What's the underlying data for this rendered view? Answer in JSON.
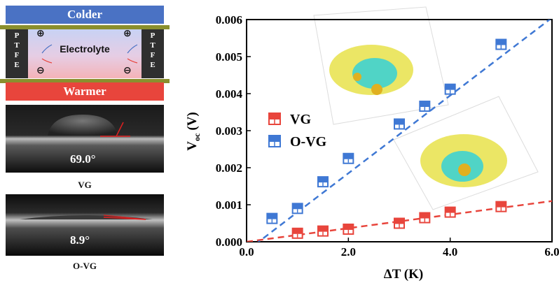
{
  "schematic": {
    "top_label": "Colder",
    "bottom_label": "Warmer",
    "middle_label": "Electrolyte",
    "ptfe_letters": [
      "P",
      "T",
      "F",
      "E"
    ],
    "plus_symbol": "⊕",
    "minus_symbol": "⊖",
    "colors": {
      "cold": "#4a72c4",
      "warm": "#e8453c",
      "electrode": "#8a8f2e",
      "ptfe": "#2f2f2f"
    }
  },
  "photos": [
    {
      "angle": "69.0°",
      "caption": "VG"
    },
    {
      "angle": "8.9°",
      "caption": "O-VG"
    }
  ],
  "chart_data": {
    "type": "scatter",
    "xlabel": "ΔT (K)",
    "ylabel_main": "V",
    "ylabel_sub": "oc",
    "ylabel_unit": "(V)",
    "xlim": [
      0.0,
      6.0
    ],
    "ylim": [
      0.0,
      0.006
    ],
    "xticks": [
      "0.0",
      "2.0",
      "4.0",
      "6.0"
    ],
    "yticks": [
      "0.000",
      "0.001",
      "0.002",
      "0.003",
      "0.004",
      "0.005",
      "0.006"
    ],
    "legend_position": "center-left",
    "series": [
      {
        "name": "VG",
        "color": "#e8453c",
        "x": [
          1.0,
          1.5,
          2.0,
          3.0,
          3.5,
          4.0,
          5.0
        ],
        "y": [
          0.00023,
          0.00029,
          0.00034,
          0.0005,
          0.00065,
          0.0008,
          0.00095
        ],
        "fit": {
          "x": [
            0.0,
            6.0
          ],
          "y": [
            0.0,
            0.0011
          ]
        }
      },
      {
        "name": "O-VG",
        "color": "#3f78d4",
        "x": [
          0.5,
          1.0,
          1.5,
          2.0,
          3.0,
          3.5,
          4.0,
          5.0
        ],
        "y": [
          0.00063,
          0.0009,
          0.00162,
          0.00225,
          0.00318,
          0.00366,
          0.00412,
          0.00533
        ],
        "fit": {
          "x": [
            0.0,
            6.0
          ],
          "y": [
            -0.00025,
            0.00605
          ]
        }
      }
    ]
  }
}
